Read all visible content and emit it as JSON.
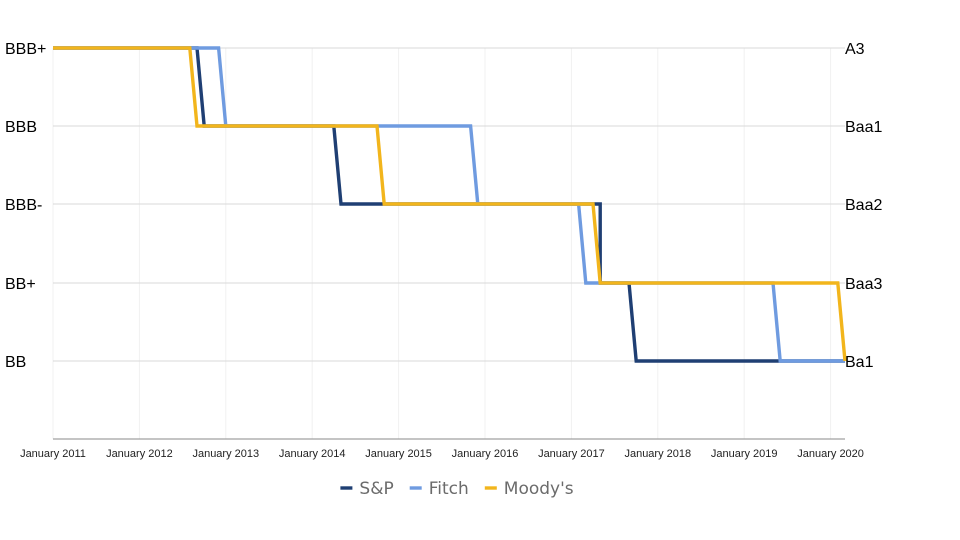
{
  "chart_data": {
    "type": "line",
    "step": true,
    "title": "",
    "xlabel": "",
    "ylabel": "",
    "x_ticks": [
      "January 2011",
      "January 2012",
      "January 2013",
      "January 2014",
      "January 2015",
      "January 2016",
      "January 2017",
      "January 2018",
      "January 2019",
      "January 2020"
    ],
    "x_range": [
      "2011-01",
      "2020-03"
    ],
    "y_left_ticks": [
      "BBB+",
      "BBB",
      "BBB-",
      "BB+",
      "BB"
    ],
    "y_right_ticks": [
      "A3",
      "Baa1",
      "Baa2",
      "Baa3",
      "Ba1"
    ],
    "grid": {
      "horizontal": true,
      "vertical": true
    },
    "legend_position": "bottom",
    "series": [
      {
        "name": "S&P",
        "color": "#1f3f73",
        "points": [
          {
            "date": "2011-01",
            "rating": "BBB+"
          },
          {
            "date": "2012-09",
            "rating": "BBB+"
          },
          {
            "date": "2012-10",
            "rating": "BBB"
          },
          {
            "date": "2014-04",
            "rating": "BBB"
          },
          {
            "date": "2014-05",
            "rating": "BBB-"
          },
          {
            "date": "2017-05",
            "rating": "BBB-"
          },
          {
            "date": "2017-05",
            "rating": "BB+"
          },
          {
            "date": "2017-09",
            "rating": "BB+"
          },
          {
            "date": "2017-10",
            "rating": "BB"
          },
          {
            "date": "2019-06",
            "rating": "BB"
          },
          {
            "date": "2020-03",
            "rating": "BB"
          }
        ]
      },
      {
        "name": "Fitch",
        "color": "#6f9be0",
        "points": [
          {
            "date": "2011-01",
            "rating": "BBB+"
          },
          {
            "date": "2012-12",
            "rating": "BBB+"
          },
          {
            "date": "2013-01",
            "rating": "BBB"
          },
          {
            "date": "2015-11",
            "rating": "BBB"
          },
          {
            "date": "2015-12",
            "rating": "BBB-"
          },
          {
            "date": "2017-02",
            "rating": "BBB-"
          },
          {
            "date": "2017-03",
            "rating": "BB+"
          },
          {
            "date": "2019-05",
            "rating": "BB+"
          },
          {
            "date": "2019-06",
            "rating": "BB"
          },
          {
            "date": "2020-03",
            "rating": "BB"
          }
        ]
      },
      {
        "name": "Moody's",
        "color": "#f2b51c",
        "points": [
          {
            "date": "2011-01",
            "rating": "BBB+"
          },
          {
            "date": "2012-08",
            "rating": "BBB+"
          },
          {
            "date": "2012-09",
            "rating": "BBB"
          },
          {
            "date": "2014-10",
            "rating": "BBB"
          },
          {
            "date": "2014-11",
            "rating": "BBB-"
          },
          {
            "date": "2017-04",
            "rating": "BBB-"
          },
          {
            "date": "2017-05",
            "rating": "BB+"
          },
          {
            "date": "2020-02",
            "rating": "BB+"
          },
          {
            "date": "2020-03",
            "rating": "BB"
          }
        ]
      }
    ]
  }
}
